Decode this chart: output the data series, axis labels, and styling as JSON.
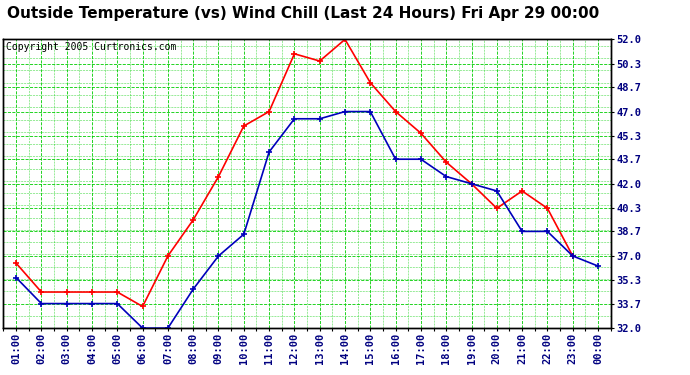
{
  "title": "Outside Temperature (vs) Wind Chill (Last 24 Hours) Fri Apr 29 00:00",
  "copyright": "Copyright 2005 Curtronics.com",
  "x_labels": [
    "01:00",
    "02:00",
    "03:00",
    "04:00",
    "05:00",
    "06:00",
    "07:00",
    "08:00",
    "09:00",
    "10:00",
    "11:00",
    "12:00",
    "13:00",
    "14:00",
    "15:00",
    "16:00",
    "17:00",
    "18:00",
    "19:00",
    "20:00",
    "21:00",
    "22:00",
    "23:00",
    "00:00"
  ],
  "outside_temp": [
    36.5,
    34.5,
    34.5,
    34.5,
    34.5,
    33.5,
    37.0,
    39.5,
    42.5,
    46.0,
    47.0,
    51.0,
    50.5,
    52.0,
    49.0,
    47.0,
    45.5,
    43.5,
    42.0,
    40.3,
    41.5,
    40.3,
    37.0,
    null
  ],
  "wind_chill": [
    35.5,
    33.7,
    33.7,
    33.7,
    33.7,
    32.0,
    32.0,
    34.7,
    37.0,
    38.5,
    44.2,
    46.5,
    46.5,
    47.0,
    47.0,
    43.7,
    43.7,
    42.5,
    42.0,
    41.5,
    38.7,
    38.7,
    37.0,
    36.3
  ],
  "outside_color": "#ff0000",
  "windchill_color": "#0000bb",
  "background_color": "#ffffff",
  "plot_bg_color": "#ffffff",
  "grid_color": "#00cc00",
  "border_color": "#000000",
  "yticks": [
    32.0,
    33.7,
    35.3,
    37.0,
    38.7,
    40.3,
    42.0,
    43.7,
    45.3,
    47.0,
    48.7,
    50.3,
    52.0
  ],
  "ylim": [
    32.0,
    52.0
  ],
  "title_fontsize": 11,
  "copyright_fontsize": 7,
  "tick_fontsize": 7.5,
  "marker": "+",
  "markersize": 5,
  "linewidth": 1.2
}
